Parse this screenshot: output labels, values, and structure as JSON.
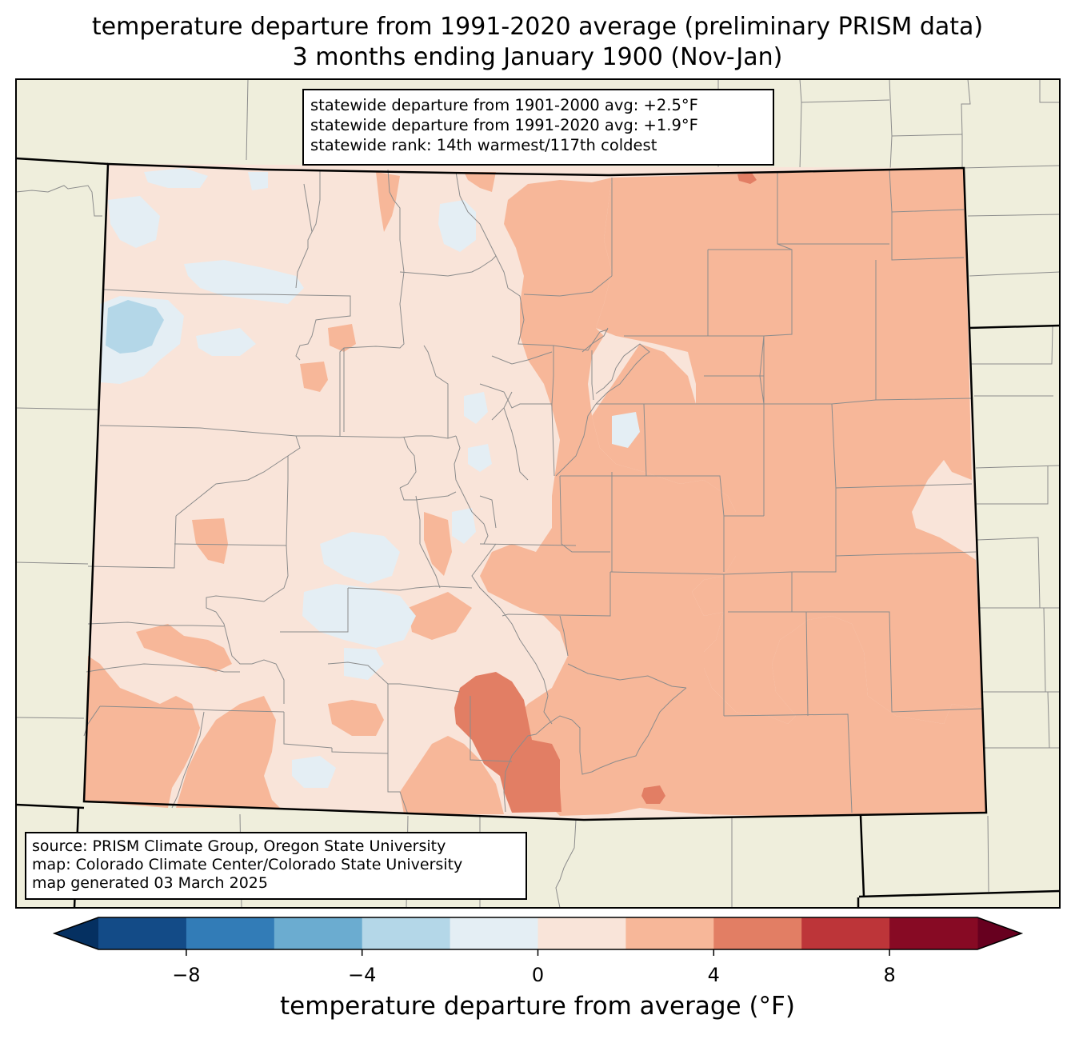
{
  "title": {
    "line1": "temperature departure from 1991-2020 average (preliminary PRISM data)",
    "line2": "3 months ending January 1900 (Nov-Jan)"
  },
  "stats": {
    "line1": "statewide departure from 1901-2000 avg: +2.5°F",
    "line2": "statewide departure from 1991-2020 avg: +1.9°F",
    "line3": "statewide rank: 14th warmest/117th coldest"
  },
  "source": {
    "line1": "source: PRISM Climate Group, Oregon State University",
    "line2": "map: Colorado Climate Center/Colorado State University",
    "line3": "map generated 03 March 2025"
  },
  "colorbar": {
    "label": "temperature departure from average (°F)",
    "bins": [
      -10,
      -8,
      -6,
      -4,
      -2,
      0,
      2,
      4,
      6,
      8,
      10
    ],
    "colors": [
      "#134b87",
      "#327cb7",
      "#6bacd0",
      "#b4d7e8",
      "#e4eef4",
      "#f9e4d9",
      "#f7b799",
      "#e27e64",
      "#bd3539",
      "#870a24"
    ],
    "under_color": "#053061",
    "over_color": "#67001f",
    "ticks": [
      "−8",
      "−4",
      "0",
      "4",
      "8"
    ],
    "tick_values": [
      -8,
      -4,
      0,
      4,
      8
    ]
  },
  "colors": {
    "land": "#efeedc",
    "state_base": "#f9e4d9"
  }
}
